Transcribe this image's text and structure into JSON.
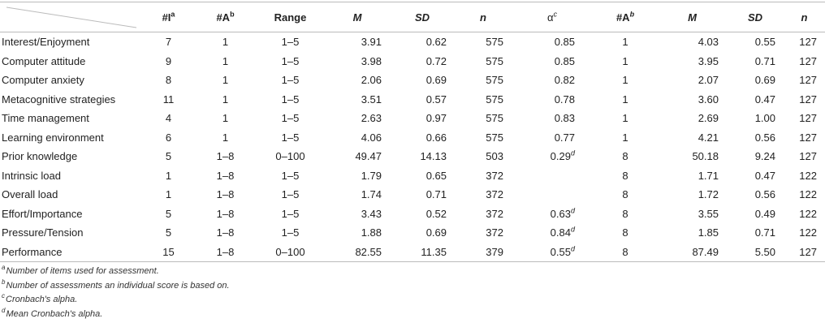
{
  "headers": {
    "items": "#I",
    "items_sup": "a",
    "assess": "#A",
    "assess_sup": "b",
    "range": "Range",
    "mean": "M",
    "sd": "SD",
    "n": "n",
    "alpha": "α",
    "alpha_sup": "c",
    "assess2": "#A",
    "assess2_sup": "b",
    "mean2": "M",
    "sd2": "SD",
    "n2": "n"
  },
  "rows": [
    {
      "label": "Interest/Enjoyment",
      "items": "7",
      "assess": "1",
      "range": "1–5",
      "mean": "3.91",
      "sd": "0.62",
      "n": "575",
      "alpha": "0.85",
      "alpha_sup": "",
      "assess2": "1",
      "mean2": "4.03",
      "sd2": "0.55",
      "n2": "127"
    },
    {
      "label": "Computer attitude",
      "items": "9",
      "assess": "1",
      "range": "1–5",
      "mean": "3.98",
      "sd": "0.72",
      "n": "575",
      "alpha": "0.85",
      "alpha_sup": "",
      "assess2": "1",
      "mean2": "3.95",
      "sd2": "0.71",
      "n2": "127"
    },
    {
      "label": "Computer anxiety",
      "items": "8",
      "assess": "1",
      "range": "1–5",
      "mean": "2.06",
      "sd": "0.69",
      "n": "575",
      "alpha": "0.82",
      "alpha_sup": "",
      "assess2": "1",
      "mean2": "2.07",
      "sd2": "0.69",
      "n2": "127"
    },
    {
      "label": "Metacognitive strategies",
      "items": "11",
      "assess": "1",
      "range": "1–5",
      "mean": "3.51",
      "sd": "0.57",
      "n": "575",
      "alpha": "0.78",
      "alpha_sup": "",
      "assess2": "1",
      "mean2": "3.60",
      "sd2": "0.47",
      "n2": "127"
    },
    {
      "label": "Time management",
      "items": "4",
      "assess": "1",
      "range": "1–5",
      "mean": "2.63",
      "sd": "0.97",
      "n": "575",
      "alpha": "0.83",
      "alpha_sup": "",
      "assess2": "1",
      "mean2": "2.69",
      "sd2": "1.00",
      "n2": "127"
    },
    {
      "label": "Learning environment",
      "items": "6",
      "assess": "1",
      "range": "1–5",
      "mean": "4.06",
      "sd": "0.66",
      "n": "575",
      "alpha": "0.77",
      "alpha_sup": "",
      "assess2": "1",
      "mean2": "4.21",
      "sd2": "0.56",
      "n2": "127"
    },
    {
      "label": "Prior knowledge",
      "items": "5",
      "assess": "1–8",
      "range": "0–100",
      "mean": "49.47",
      "sd": "14.13",
      "n": "503",
      "alpha": "0.29",
      "alpha_sup": "d",
      "assess2": "8",
      "mean2": "50.18",
      "sd2": "9.24",
      "n2": "127"
    },
    {
      "label": "Intrinsic load",
      "items": "1",
      "assess": "1–8",
      "range": "1–5",
      "mean": "1.79",
      "sd": "0.65",
      "n": "372",
      "alpha": "",
      "alpha_sup": "",
      "assess2": "8",
      "mean2": "1.71",
      "sd2": "0.47",
      "n2": "122"
    },
    {
      "label": "Overall load",
      "items": "1",
      "assess": "1–8",
      "range": "1–5",
      "mean": "1.74",
      "sd": "0.71",
      "n": "372",
      "alpha": "",
      "alpha_sup": "",
      "assess2": "8",
      "mean2": "1.72",
      "sd2": "0.56",
      "n2": "122"
    },
    {
      "label": "Effort/Importance",
      "items": "5",
      "assess": "1–8",
      "range": "1–5",
      "mean": "3.43",
      "sd": "0.52",
      "n": "372",
      "alpha": "0.63",
      "alpha_sup": "d",
      "assess2": "8",
      "mean2": "3.55",
      "sd2": "0.49",
      "n2": "122"
    },
    {
      "label": "Pressure/Tension",
      "items": "5",
      "assess": "1–8",
      "range": "1–5",
      "mean": "1.88",
      "sd": "0.69",
      "n": "372",
      "alpha": "0.84",
      "alpha_sup": "d",
      "assess2": "8",
      "mean2": "1.85",
      "sd2": "0.71",
      "n2": "122"
    },
    {
      "label": "Performance",
      "items": "15",
      "assess": "1–8",
      "range": "0–100",
      "mean": "82.55",
      "sd": "11.35",
      "n": "379",
      "alpha": "0.55",
      "alpha_sup": "d",
      "assess2": "8",
      "mean2": "87.49",
      "sd2": "5.50",
      "n2": "127"
    }
  ],
  "footnotes": [
    {
      "mark": "a",
      "text": "Number of items used for assessment."
    },
    {
      "mark": "b",
      "text": "Number of assessments an individual score is based on."
    },
    {
      "mark": "c",
      "text": "Cronbach's alpha."
    },
    {
      "mark": "d",
      "text": "Mean Cronbach's alpha."
    }
  ]
}
